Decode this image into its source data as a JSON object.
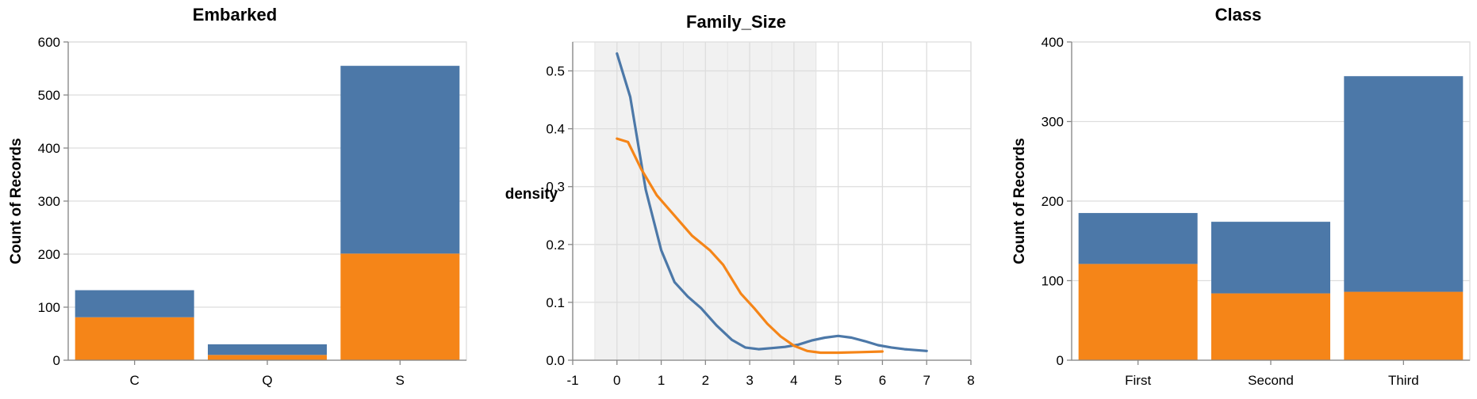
{
  "colors": {
    "blue": "#4c78a8",
    "orange": "#f58518",
    "band": "#ebebeb"
  },
  "chart_data": [
    {
      "type": "bar",
      "stacked": true,
      "title": "Embarked",
      "xlabel": "",
      "ylabel": "Count of Records",
      "categories": [
        "C",
        "Q",
        "S"
      ],
      "series": [
        {
          "color": "orange",
          "values": [
            81,
            10,
            201
          ]
        },
        {
          "color": "blue",
          "values": [
            51,
            20,
            354
          ]
        }
      ],
      "totals": [
        132,
        30,
        555
      ],
      "ylim": [
        0,
        600
      ],
      "yticks": [
        "0",
        "100",
        "200",
        "300",
        "400",
        "500",
        "600"
      ],
      "grid": true
    },
    {
      "type": "line",
      "title": "Family_Size",
      "xlabel": "",
      "ylabel": "density",
      "xlim": [
        -1,
        8
      ],
      "ylim": [
        0,
        0.55
      ],
      "xticks": [
        "-1",
        "0",
        "1",
        "2",
        "3",
        "4",
        "5",
        "6",
        "7",
        "8"
      ],
      "yticks": [
        "0.0",
        "0.1",
        "0.2",
        "0.3",
        "0.4",
        "0.5"
      ],
      "band": {
        "x0": -0.5,
        "x1": 4.5
      },
      "series": [
        {
          "color": "blue",
          "x": [
            0,
            0.3,
            0.65,
            1.0,
            1.3,
            1.6,
            1.9,
            2.25,
            2.6,
            2.9,
            3.2,
            3.5,
            3.8,
            4.1,
            4.4,
            4.7,
            5.0,
            5.3,
            5.6,
            5.9,
            6.2,
            6.5,
            7.0
          ],
          "y": [
            0.53,
            0.455,
            0.295,
            0.19,
            0.135,
            0.11,
            0.09,
            0.06,
            0.035,
            0.022,
            0.019,
            0.021,
            0.023,
            0.027,
            0.034,
            0.039,
            0.042,
            0.039,
            0.033,
            0.026,
            0.022,
            0.019,
            0.016
          ]
        },
        {
          "color": "orange",
          "x": [
            0,
            0.25,
            0.55,
            0.9,
            1.3,
            1.7,
            2.1,
            2.4,
            2.8,
            3.1,
            3.4,
            3.7,
            4.0,
            4.3,
            4.6,
            5.0,
            5.5,
            6.0
          ],
          "y": [
            0.383,
            0.377,
            0.33,
            0.285,
            0.25,
            0.215,
            0.19,
            0.165,
            0.115,
            0.09,
            0.063,
            0.041,
            0.025,
            0.016,
            0.013,
            0.013,
            0.014,
            0.015
          ]
        }
      ],
      "grid": true
    },
    {
      "type": "bar",
      "stacked": true,
      "title": "Class",
      "xlabel": "",
      "ylabel": "Count of Records",
      "categories": [
        "First",
        "Second",
        "Third"
      ],
      "series": [
        {
          "color": "orange",
          "values": [
            121,
            84,
            86
          ]
        },
        {
          "color": "blue",
          "values": [
            64,
            90,
            271
          ]
        }
      ],
      "totals": [
        185,
        174,
        357
      ],
      "ylim": [
        0,
        400
      ],
      "yticks": [
        "0",
        "100",
        "200",
        "300",
        "400"
      ],
      "grid": true
    }
  ]
}
